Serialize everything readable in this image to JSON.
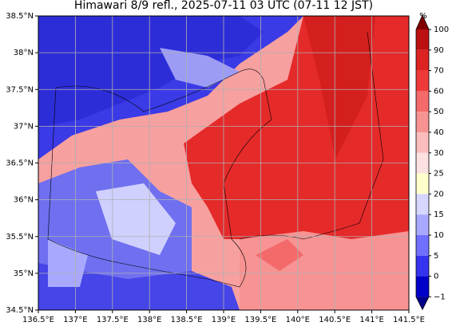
{
  "title": "Himawari 8/9 refl., 2025-07-11 03 UTC (07-11 12 JST)",
  "map": {
    "lonlim": [
      136.5,
      141.5
    ],
    "latlim": [
      34.5,
      38.5
    ],
    "grid": true,
    "lon_ticks": [
      {
        "value": 136.5,
        "label": "136.5°E"
      },
      {
        "value": 137,
        "label": "137°E"
      },
      {
        "value": 137.5,
        "label": "137.5°E"
      },
      {
        "value": 138,
        "label": "138°E"
      },
      {
        "value": 138.5,
        "label": "138.5°E"
      },
      {
        "value": 139,
        "label": "139°E"
      },
      {
        "value": 139.5,
        "label": "139.5°E"
      },
      {
        "value": 140,
        "label": "140°E"
      },
      {
        "value": 140.5,
        "label": "140.5°E"
      },
      {
        "value": 141,
        "label": "141°E"
      },
      {
        "value": 141.5,
        "label": "141.5°E"
      }
    ],
    "lat_ticks": [
      {
        "value": 38.5,
        "label": "38.5°N"
      },
      {
        "value": 38,
        "label": "38°N"
      },
      {
        "value": 37.5,
        "label": "37.5°N"
      },
      {
        "value": 37,
        "label": "37°N"
      },
      {
        "value": 36.5,
        "label": "36.5°N"
      },
      {
        "value": 36,
        "label": "36°N"
      },
      {
        "value": 35.5,
        "label": "35.5°N"
      },
      {
        "value": 35,
        "label": "35°N"
      },
      {
        "value": 34.5,
        "label": "34.5°N"
      }
    ]
  },
  "colorbar": {
    "unit": "%",
    "ticks": [
      100,
      90,
      70,
      60,
      50,
      40,
      30,
      25,
      20,
      15,
      10,
      5,
      0,
      {
        "value": -1,
        "label": "−1"
      }
    ],
    "colors": [
      "#bb1111",
      "#dd2222",
      "#f03a3a",
      "#f46a6a",
      "#f79393",
      "#fabcbc",
      "#fde0e0",
      "#ffffcc",
      "#d6d6ff",
      "#a8a8ff",
      "#7070ff",
      "#3434f0",
      "#0000c8"
    ],
    "extend_colors": [
      "#800000",
      "#00008b"
    ]
  }
}
